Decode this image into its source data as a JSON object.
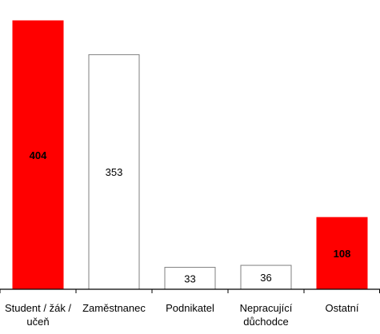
{
  "chart_data": {
    "type": "bar",
    "title": "",
    "xlabel": "",
    "ylabel": "",
    "categories": [
      [
        "Student / žák /",
        "učeň"
      ],
      [
        "Zaměstnanec"
      ],
      [
        "Podnikatel"
      ],
      [
        "Nepracující",
        "důchodce"
      ],
      [
        "Ostatní"
      ]
    ],
    "values": [
      404,
      353,
      33,
      36,
      108
    ],
    "value_labels": [
      "404",
      "353",
      "33",
      "36",
      "108"
    ],
    "bar_fill": [
      "#ff0000",
      "#ffffff",
      "#ffffff",
      "#ffffff",
      "#ff0000"
    ],
    "label_bold": [
      true,
      false,
      false,
      false,
      true
    ],
    "ylim": [
      0,
      404
    ],
    "grid": false,
    "legend": "none",
    "colors": {
      "highlight": "#ff0000",
      "plain": "#ffffff",
      "bar_border": "#7f7f7f",
      "axis": "#000000",
      "text": "#000000"
    }
  }
}
